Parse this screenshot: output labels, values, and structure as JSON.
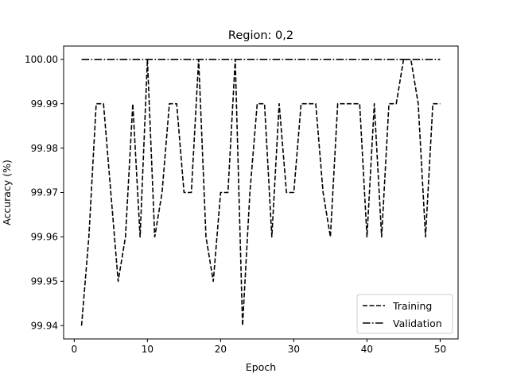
{
  "chart_data": {
    "type": "line",
    "title": "Region: 0,2",
    "xlabel": "Epoch",
    "ylabel": "Accuracy (%)",
    "xlim": [
      -1.45,
      52.45
    ],
    "ylim": [
      99.937,
      100.003
    ],
    "xticks": [
      0,
      10,
      20,
      30,
      40,
      50
    ],
    "yticks": [
      99.94,
      99.95,
      99.96,
      99.97,
      99.98,
      99.99,
      100.0
    ],
    "ytick_labels": [
      "99.94",
      "99.95",
      "99.96",
      "99.97",
      "99.98",
      "99.99",
      "100.00"
    ],
    "grid": false,
    "legend_position": "lower-right",
    "x": [
      1,
      2,
      3,
      4,
      5,
      6,
      7,
      8,
      9,
      10,
      11,
      12,
      13,
      14,
      15,
      16,
      17,
      18,
      19,
      20,
      21,
      22,
      23,
      24,
      25,
      26,
      27,
      28,
      29,
      30,
      31,
      32,
      33,
      34,
      35,
      36,
      37,
      38,
      39,
      40,
      41,
      42,
      43,
      44,
      45,
      46,
      47,
      48,
      49,
      50
    ],
    "series": [
      {
        "name": "Training",
        "style": "dashed",
        "color": "#000000",
        "values": [
          99.94,
          99.96,
          99.99,
          99.99,
          99.97,
          99.95,
          99.96,
          99.99,
          99.96,
          100.0,
          99.96,
          99.97,
          99.99,
          99.99,
          99.97,
          99.97,
          100.0,
          99.96,
          99.95,
          99.97,
          99.97,
          100.0,
          99.94,
          99.97,
          99.99,
          99.99,
          99.96,
          99.99,
          99.97,
          99.97,
          99.99,
          99.99,
          99.99,
          99.97,
          99.96,
          99.99,
          99.99,
          99.99,
          99.99,
          99.96,
          99.99,
          99.96,
          99.99,
          99.99,
          100.0,
          100.0,
          99.99,
          99.96,
          99.99,
          99.99
        ]
      },
      {
        "name": "Validation",
        "style": "dashdot",
        "color": "#000000",
        "values": [
          100.0,
          100.0,
          100.0,
          100.0,
          100.0,
          100.0,
          100.0,
          100.0,
          100.0,
          100.0,
          100.0,
          100.0,
          100.0,
          100.0,
          100.0,
          100.0,
          100.0,
          100.0,
          100.0,
          100.0,
          100.0,
          100.0,
          100.0,
          100.0,
          100.0,
          100.0,
          100.0,
          100.0,
          100.0,
          100.0,
          100.0,
          100.0,
          100.0,
          100.0,
          100.0,
          100.0,
          100.0,
          100.0,
          100.0,
          100.0,
          100.0,
          100.0,
          100.0,
          100.0,
          100.0,
          100.0,
          100.0,
          100.0,
          100.0,
          100.0
        ]
      }
    ]
  }
}
